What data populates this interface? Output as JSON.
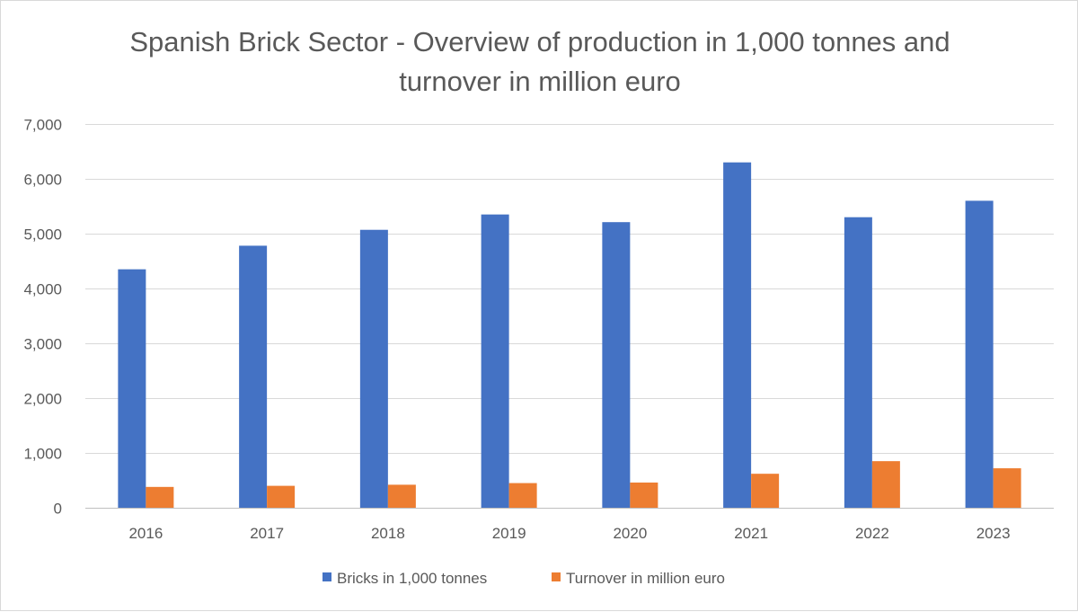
{
  "chart_data": {
    "type": "bar",
    "title": "Spanish Brick Sector - Overview of production in 1,000 tonnes and turnover in million euro",
    "categories": [
      "2016",
      "2017",
      "2018",
      "2019",
      "2020",
      "2021",
      "2022",
      "2023"
    ],
    "series": [
      {
        "name": "Bricks in 1,000 tonnes",
        "color": "#4472c4",
        "values": [
          4350,
          4780,
          5070,
          5350,
          5210,
          6300,
          5300,
          5600
        ]
      },
      {
        "name": "Turnover in million euro",
        "color": "#ed7d31",
        "values": [
          380,
          400,
          420,
          450,
          460,
          620,
          850,
          720
        ]
      }
    ],
    "ylim": [
      0,
      7000
    ],
    "yticks": [
      0,
      1000,
      2000,
      3000,
      4000,
      5000,
      6000,
      7000
    ],
    "ytick_labels": [
      "0",
      "1,000",
      "2,000",
      "3,000",
      "4,000",
      "5,000",
      "6,000",
      "7,000"
    ],
    "xlabel": "",
    "ylabel": "",
    "grid": true,
    "legend_position": "bottom"
  }
}
